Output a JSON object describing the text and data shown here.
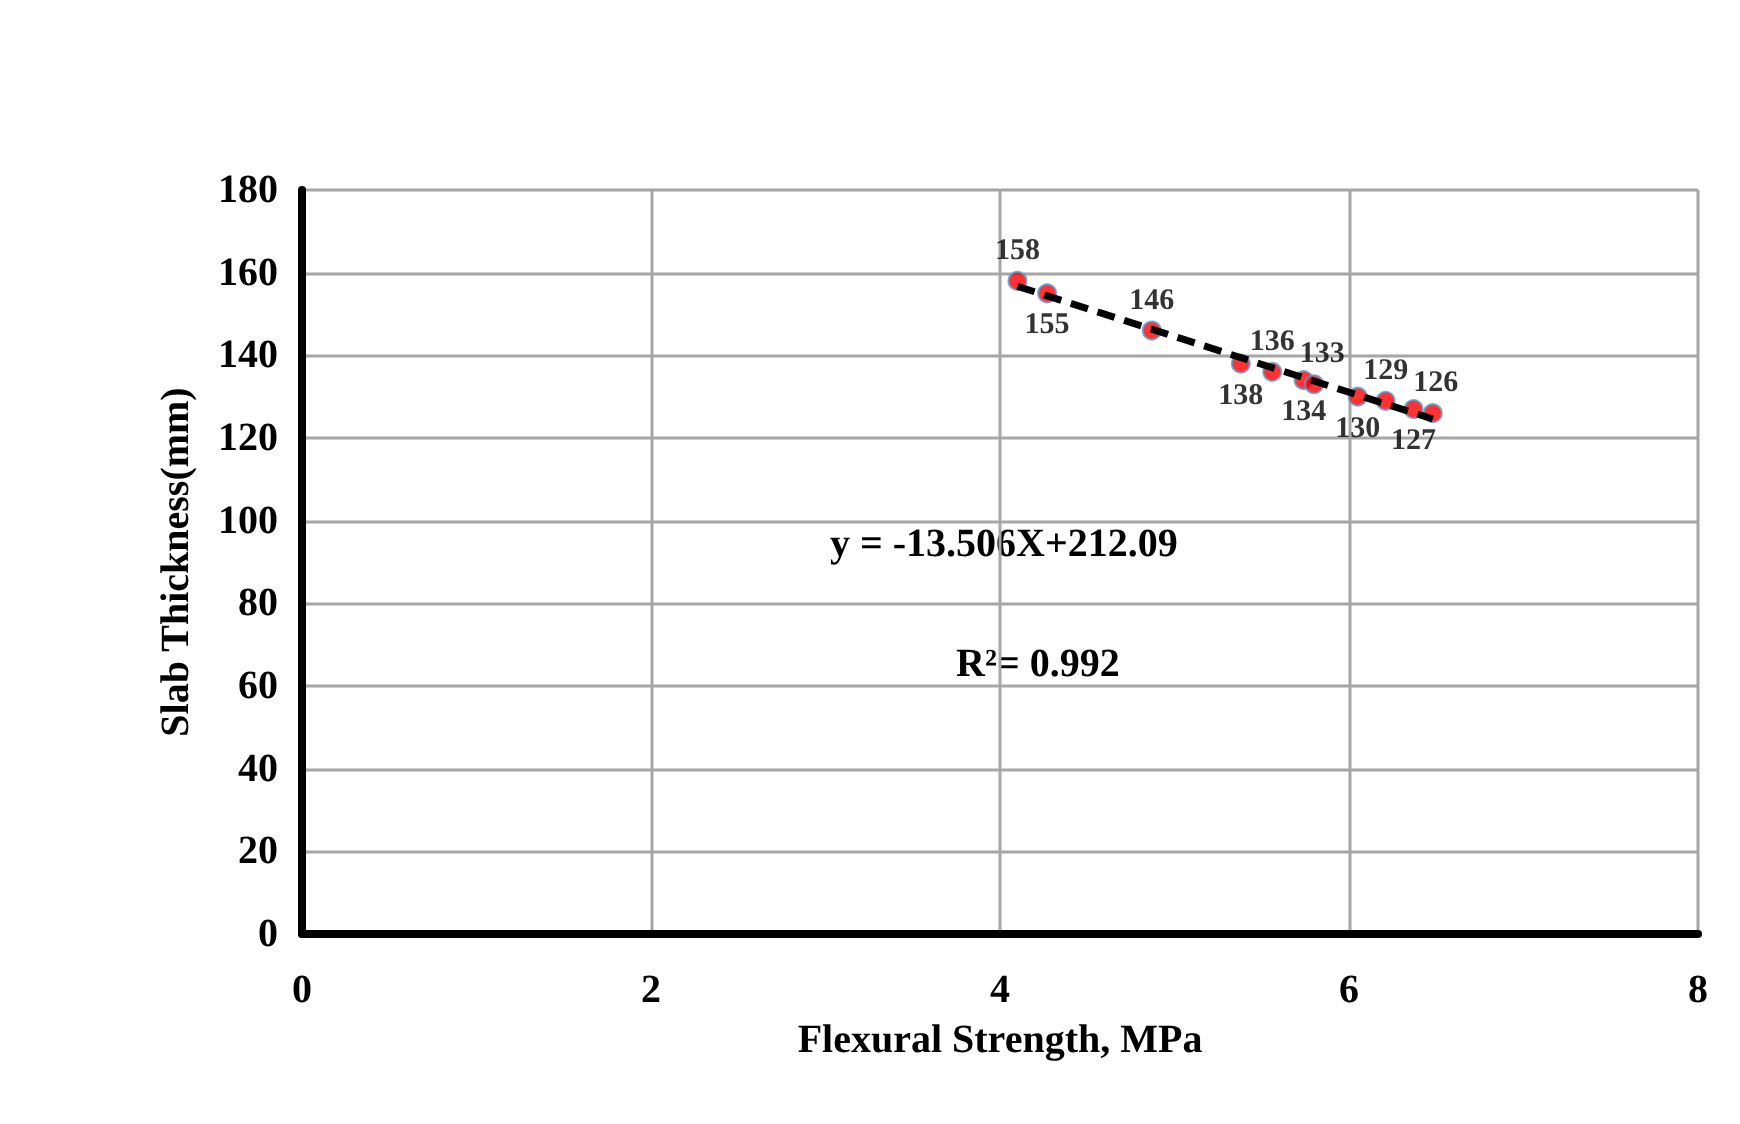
{
  "chart_data": {
    "type": "scatter",
    "xlabel": "Flexural Strength, MPa",
    "ylabel": "Slab Thickness(mm)",
    "xlim": [
      0,
      8
    ],
    "xticks": [
      0,
      2,
      4,
      6,
      8
    ],
    "ylim": [
      0,
      180
    ],
    "yticks": [
      0,
      20,
      40,
      60,
      80,
      100,
      120,
      140,
      160,
      180
    ],
    "grid": true,
    "marker": "circle",
    "series": [
      {
        "color": "#ff0000",
        "x": [
          4.1,
          4.27,
          4.87,
          5.38,
          5.56,
          5.74,
          5.8,
          6.05,
          6.21,
          6.37,
          6.48
        ],
        "values": [
          158,
          155,
          146,
          138,
          136,
          134,
          133,
          130,
          129,
          127,
          126
        ],
        "value_labels": [
          "158",
          "155",
          "146",
          "138",
          "136",
          "134",
          "133",
          "130",
          "129",
          "127",
          "126"
        ]
      },
      {
        "type": "line",
        "color": "#000000",
        "line_style": "dashed",
        "marker": "none",
        "x": [
          4.1,
          6.48
        ],
        "values": [
          156.7,
          124.6
        ]
      }
    ],
    "annotations": [
      "y = -13.506X+212.09",
      "R²= 0.992"
    ]
  }
}
